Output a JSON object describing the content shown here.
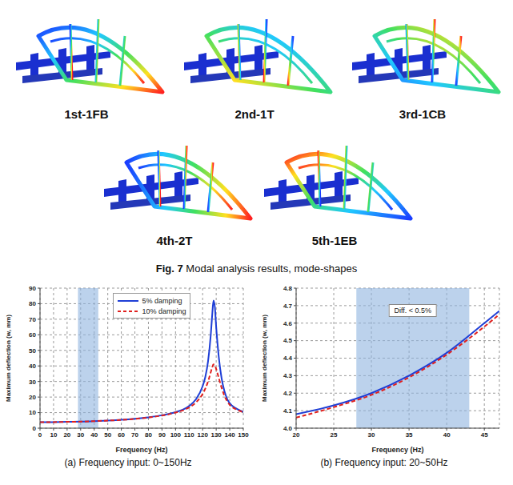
{
  "mode_shapes": [
    "1st-1FB",
    "2nd-1T",
    "3rd-1CB",
    "4th-2T",
    "5th-1EB"
  ],
  "figure_caption": {
    "number": "Fig. 7",
    "text": "Modal analysis results, mode-shapes"
  },
  "chart_data": [
    {
      "type": "line",
      "caption": "(a)  Frequency input: 0~150Hz",
      "x_label": "Frequency (Hz)",
      "y_label": "Maximum deflection (w, mm)",
      "x": [
        0,
        10,
        20,
        30,
        40,
        50,
        60,
        70,
        80,
        90,
        100,
        110,
        115,
        120,
        122,
        124,
        126,
        127,
        128,
        129,
        130,
        132,
        134,
        136,
        138,
        140,
        145,
        150
      ],
      "series": [
        {
          "name": "5% damping",
          "color": "#1f3fd6",
          "line_style": "solid",
          "values": [
            3.8,
            3.9,
            4.1,
            4.2,
            4.5,
            4.9,
            5.4,
            6.1,
            7.0,
            8.3,
            10.3,
            14.2,
            18.5,
            27,
            33,
            43,
            60,
            72,
            82,
            78,
            65,
            45,
            32,
            24,
            19,
            16,
            12.5,
            10.5
          ]
        },
        {
          "name": "10% damping",
          "color": "#e0201e",
          "line_style": "dashed",
          "values": [
            3.8,
            3.9,
            4.1,
            4.2,
            4.5,
            4.9,
            5.3,
            6.0,
            6.9,
            8.1,
            10.0,
            13.3,
            16.5,
            22,
            25.5,
            30,
            36,
            39,
            41,
            40.5,
            38,
            32,
            26,
            21,
            17.5,
            15,
            12,
            10.3
          ]
        }
      ],
      "xlim": [
        0,
        150
      ],
      "xticks": [
        0,
        10,
        20,
        30,
        40,
        50,
        60,
        70,
        80,
        90,
        100,
        110,
        120,
        130,
        140,
        150
      ],
      "ylim": [
        0,
        90
      ],
      "yticks": [
        0,
        10,
        20,
        30,
        40,
        50,
        60,
        70,
        80,
        90
      ],
      "grid": true,
      "legend": "upper right",
      "shaded_range": [
        28,
        43
      ]
    },
    {
      "type": "line",
      "caption": "(b) Frequency input: 20~50Hz",
      "x_label": "Frequency (Hz)",
      "y_label": "Maximum deflection (w, mm)",
      "x": [
        20,
        25,
        30,
        35,
        40,
        45,
        47
      ],
      "series": [
        {
          "color": "#1f3fd6",
          "line_style": "solid",
          "values": [
            4.08,
            4.13,
            4.2,
            4.3,
            4.43,
            4.6,
            4.67
          ]
        },
        {
          "color": "#e0201e",
          "line_style": "dashed",
          "values": [
            4.06,
            4.12,
            4.19,
            4.29,
            4.42,
            4.58,
            4.65
          ]
        }
      ],
      "xlim": [
        20,
        47
      ],
      "xticks": [
        20,
        25,
        30,
        35,
        40,
        45
      ],
      "ylim": [
        4.0,
        4.8
      ],
      "yticks": [
        {
          "value": 4,
          "label": "4.0"
        },
        4.1,
        4.2,
        4.3,
        4.4,
        4.5,
        4.6,
        4.7,
        4.8
      ],
      "grid": true,
      "shaded_range": [
        28,
        43
      ],
      "annotation": "Diff. < 0.5%"
    }
  ]
}
